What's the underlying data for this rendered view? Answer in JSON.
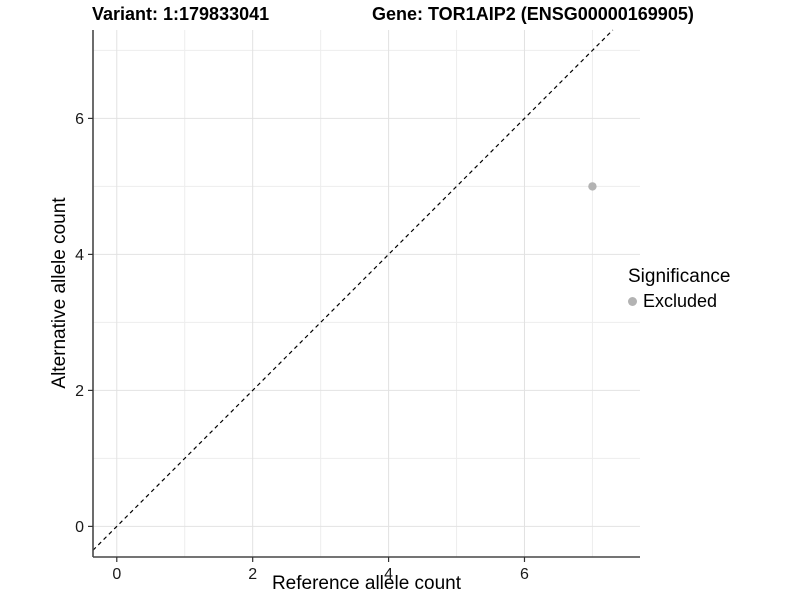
{
  "chart_data": {
    "type": "scatter",
    "title_left": "Variant: 1:179833041",
    "title_right": "Gene: TOR1AIP2 (ENSG00000169905)",
    "xlabel": "Reference allele count",
    "ylabel": "Alternative allele count",
    "xlim": [
      -0.35,
      7.7
    ],
    "ylim": [
      -0.45,
      7.3
    ],
    "xticks": [
      0,
      2,
      4,
      6
    ],
    "yticks": [
      0,
      2,
      4,
      6
    ],
    "minor_gridlines_x": [
      1,
      3,
      5,
      7
    ],
    "minor_gridlines_y": [
      1,
      3,
      5,
      7
    ],
    "points": [
      {
        "x": 7,
        "y": 5,
        "significance": "Excluded"
      }
    ],
    "abline": {
      "slope": 1,
      "intercept": 0,
      "style": "dashed",
      "color": "#000000"
    },
    "legend": {
      "title": "Significance",
      "position": "right",
      "entries": [
        {
          "label": "Excluded",
          "color": "#b3b3b3"
        }
      ]
    },
    "grid": true,
    "colors": {
      "point": "#b3b3b3",
      "grid_major": "#e2e2e2",
      "grid_minor": "#ededed",
      "axis_line": "#474747",
      "tick_text": "#333333",
      "background": "#ffffff"
    }
  }
}
